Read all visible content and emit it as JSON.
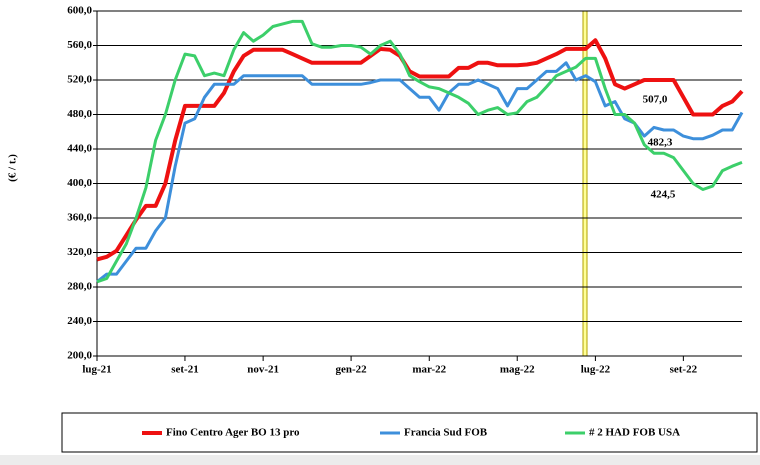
{
  "chart_data": {
    "type": "line",
    "y_label": "(€ / t.)",
    "categories": [
      "lug-21",
      null,
      null,
      null,
      null,
      null,
      null,
      null,
      null,
      "set-21",
      null,
      null,
      null,
      null,
      null,
      null,
      null,
      "nov-21",
      null,
      null,
      null,
      null,
      null,
      null,
      null,
      null,
      "gen-22",
      null,
      null,
      null,
      null,
      null,
      null,
      null,
      "mar-22",
      null,
      null,
      null,
      null,
      null,
      null,
      null,
      null,
      "mag-22",
      null,
      null,
      null,
      null,
      null,
      null,
      null,
      "lug-22",
      null,
      null,
      null,
      null,
      null,
      null,
      null,
      null,
      "set-22",
      null,
      null,
      null,
      null,
      null,
      null
    ],
    "series": [
      {
        "name": "Fino Centro Ager BO 13 pro",
        "color": "#ee1111",
        "values": [
          312,
          315,
          322,
          340,
          358,
          374,
          374,
          400,
          450,
          490,
          490,
          490,
          490,
          505,
          530,
          548,
          555,
          555,
          555,
          555,
          550,
          545,
          540,
          540,
          540,
          540,
          540,
          540,
          548,
          556,
          555,
          548,
          530,
          524,
          524,
          524,
          524,
          534,
          534,
          540,
          540,
          537,
          537,
          537,
          538,
          540,
          545,
          550,
          556,
          556,
          556,
          566,
          545,
          515,
          510,
          515,
          520,
          520,
          520,
          520,
          500,
          480,
          480,
          480,
          490,
          495,
          507.0
        ],
        "value_labels": [
          null,
          null,
          null,
          null,
          null,
          null,
          null,
          null,
          null,
          null,
          null,
          null,
          null,
          null,
          null,
          null,
          null,
          null,
          null,
          null,
          null,
          null,
          null,
          null,
          null,
          null,
          null,
          null,
          null,
          null,
          null,
          null,
          null,
          null,
          null,
          null,
          null,
          null,
          null,
          null,
          null,
          null,
          null,
          null,
          null,
          null,
          null,
          null,
          null,
          null,
          null,
          null,
          null,
          null,
          null,
          null,
          null,
          null,
          null,
          null,
          null,
          null,
          null,
          null,
          null,
          null,
          "507,0"
        ]
      },
      {
        "name": "Francia Sud FOB",
        "color": "#3d8fdb",
        "values": [
          286,
          295,
          295,
          310,
          325,
          325,
          345,
          360,
          420,
          470,
          475,
          500,
          515,
          515,
          515,
          525,
          525,
          525,
          525,
          525,
          525,
          525,
          515,
          515,
          515,
          515,
          515,
          515,
          517,
          520,
          520,
          520,
          510,
          500,
          500,
          485,
          505,
          515,
          515,
          520,
          515,
          510,
          490,
          510,
          510,
          520,
          530,
          530,
          540,
          520,
          525,
          518,
          490,
          495,
          475,
          470,
          455,
          465,
          462,
          462,
          455,
          452,
          452,
          456,
          462,
          462,
          482.3
        ],
        "value_labels": [
          null,
          null,
          null,
          null,
          null,
          null,
          null,
          null,
          null,
          null,
          null,
          null,
          null,
          null,
          null,
          null,
          null,
          null,
          null,
          null,
          null,
          null,
          null,
          null,
          null,
          null,
          null,
          null,
          null,
          null,
          null,
          null,
          null,
          null,
          null,
          null,
          null,
          null,
          null,
          null,
          null,
          null,
          null,
          null,
          null,
          null,
          null,
          null,
          null,
          null,
          null,
          null,
          null,
          null,
          null,
          null,
          null,
          null,
          null,
          null,
          null,
          null,
          null,
          null,
          null,
          null,
          "482,3"
        ]
      },
      {
        "name": "# 2 HAD FOB USA",
        "color": "#3ccf6a",
        "values": [
          286,
          290,
          310,
          330,
          360,
          395,
          450,
          480,
          520,
          550,
          548,
          525,
          528,
          525,
          555,
          575,
          565,
          572,
          582,
          585,
          588,
          588,
          562,
          558,
          558,
          560,
          560,
          558,
          550,
          560,
          565,
          550,
          525,
          518,
          512,
          510,
          505,
          500,
          493,
          480,
          485,
          488,
          480,
          482,
          495,
          500,
          512,
          525,
          530,
          535,
          545,
          545,
          510,
          480,
          480,
          470,
          445,
          435,
          435,
          430,
          415,
          400,
          393,
          397,
          415,
          420,
          424.5
        ],
        "value_labels": [
          null,
          null,
          null,
          null,
          null,
          null,
          null,
          null,
          null,
          null,
          null,
          null,
          null,
          null,
          null,
          null,
          null,
          null,
          null,
          null,
          null,
          null,
          null,
          null,
          null,
          null,
          null,
          null,
          null,
          null,
          null,
          null,
          null,
          null,
          null,
          null,
          null,
          null,
          null,
          null,
          null,
          null,
          null,
          null,
          null,
          null,
          null,
          null,
          null,
          null,
          null,
          null,
          null,
          null,
          null,
          null,
          null,
          null,
          null,
          null,
          null,
          null,
          null,
          null,
          null,
          null,
          "424,5"
        ]
      }
    ],
    "ylim": [
      200,
      600
    ],
    "yticks": [
      {
        "value": 200,
        "label": "200,0"
      },
      {
        "value": 240,
        "label": "240,0"
      },
      {
        "value": 280,
        "label": "280,0"
      },
      {
        "value": 320,
        "label": "320,0"
      },
      {
        "value": 360,
        "label": "360,0"
      },
      {
        "value": 400,
        "label": "400,0"
      },
      {
        "value": 440,
        "label": "440,0"
      },
      {
        "value": 480,
        "label": "480,0"
      },
      {
        "value": 520,
        "label": "520,0"
      },
      {
        "value": 560,
        "label": "560,0"
      },
      {
        "value": 600,
        "label": "600,0"
      }
    ],
    "grid": true
  }
}
